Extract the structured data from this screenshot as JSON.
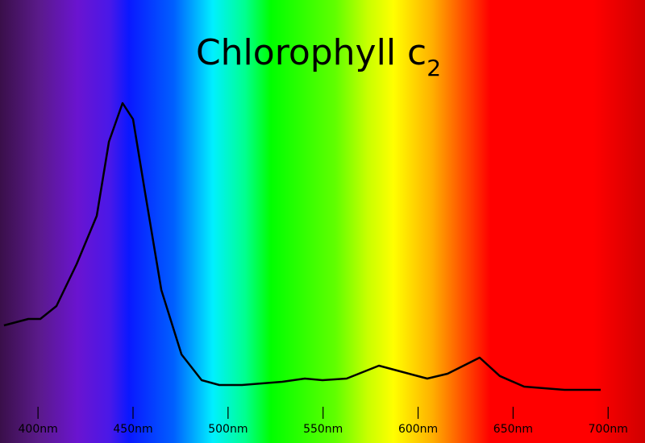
{
  "chart_data": {
    "type": "line",
    "title": "Chlorophyll c",
    "title_subscript": "2",
    "x": [
      382.1,
      394.9,
      401.2,
      409.7,
      420.3,
      430.9,
      437.3,
      444.5,
      450,
      456.4,
      464.9,
      475.5,
      486.1,
      495.4,
      496.7,
      507.3,
      528.5,
      540.4,
      549.7,
      562.4,
      579.4,
      592.1,
      604.8,
      615.5,
      632.4,
      643,
      655.8,
      677,
      696.1
    ],
    "series": [
      {
        "color": "#000000",
        "values": [
          0.24,
          0.26,
          0.26,
          0.3,
          0.43,
          0.58,
          0.81,
          0.93,
          0.88,
          0.65,
          0.35,
          0.15,
          0.07,
          0.055,
          0.055,
          0.055,
          0.065,
          0.075,
          0.07,
          0.075,
          0.115,
          0.095,
          0.075,
          0.09,
          0.14,
          0.083,
          0.05,
          0.04,
          0.04
        ]
      }
    ],
    "xlim": [
      380,
      719.4
    ],
    "ylim": [
      0,
      1
    ],
    "xticks": [
      {
        "value": 400,
        "label": "400nm"
      },
      {
        "value": 450,
        "label": "450nm"
      },
      {
        "value": 500,
        "label": "500nm"
      },
      {
        "value": 550,
        "label": "550nm"
      },
      {
        "value": 600,
        "label": "600nm"
      },
      {
        "value": 650,
        "label": "650nm"
      },
      {
        "value": 700,
        "label": "700nm"
      }
    ]
  }
}
